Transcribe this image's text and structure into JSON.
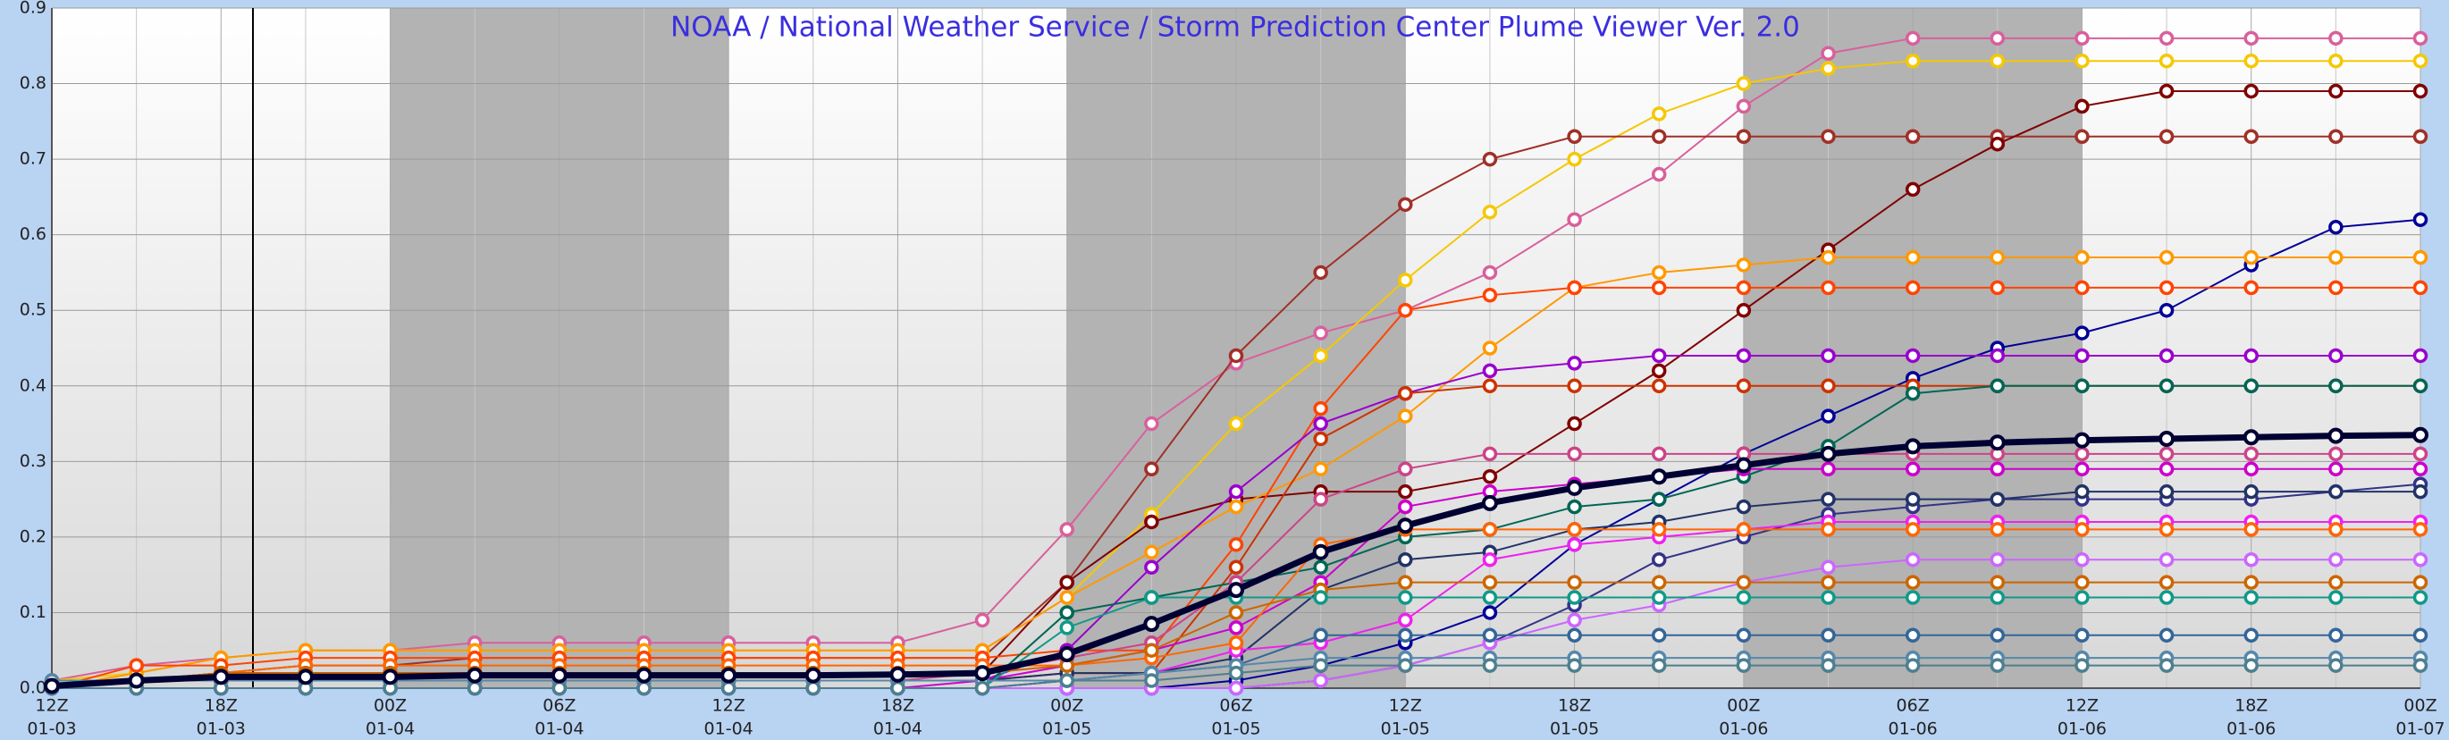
{
  "chart_data": {
    "type": "line",
    "title": "NOAA / National Weather Service / Storm Prediction Center Plume Viewer Ver. 2.0",
    "categories": [
      "12Z",
      null,
      "18Z",
      null,
      "00Z",
      null,
      "06Z",
      null,
      "12Z",
      null,
      "18Z",
      null,
      "00Z",
      null,
      "06Z",
      null,
      "12Z",
      null,
      "18Z",
      null,
      "00Z",
      null,
      "06Z",
      null,
      "12Z",
      null,
      "18Z",
      null,
      "00Z"
    ],
    "category_dates": [
      "01-03",
      null,
      "01-03",
      null,
      "01-04",
      null,
      "01-04",
      null,
      "01-04",
      null,
      "01-04",
      null,
      "01-05",
      null,
      "01-05",
      null,
      "01-05",
      null,
      "01-05",
      null,
      "01-06",
      null,
      "01-06",
      null,
      "01-06",
      null,
      "01-06",
      null,
      "01-07"
    ],
    "ylim": [
      0,
      0.9
    ],
    "yticks": [
      {
        "value": 0,
        "label": "0.0"
      },
      0.1,
      0.2,
      0.3,
      0.4,
      0.5,
      0.6,
      0.7,
      0.8,
      0.9
    ],
    "grid": true,
    "series": [
      {
        "color": "#d8609c",
        "values": [
          0.01,
          0.03,
          0.04,
          0.05,
          0.05,
          0.06,
          0.06,
          0.06,
          0.06,
          0.06,
          0.06,
          0.09,
          0.21,
          0.35,
          0.43,
          0.47,
          0.5,
          0.55,
          0.62,
          0.68,
          0.77,
          0.84,
          0.86,
          0.86,
          0.86,
          0.86,
          0.86,
          0.86,
          0.86
        ]
      },
      {
        "color": "#f5c800",
        "values": [
          0.01,
          0.02,
          0.04,
          0.05,
          0.05,
          0.05,
          0.05,
          0.05,
          0.05,
          0.05,
          0.05,
          0.05,
          0.12,
          0.23,
          0.35,
          0.44,
          0.54,
          0.63,
          0.7,
          0.76,
          0.8,
          0.82,
          0.83,
          0.83,
          0.83,
          0.83,
          0.83,
          0.83,
          0.83
        ]
      },
      {
        "color": "#a03028",
        "values": [
          0,
          0.01,
          0.02,
          0.03,
          0.03,
          0.04,
          0.04,
          0.04,
          0.04,
          0.04,
          0.04,
          0.04,
          0.14,
          0.29,
          0.44,
          0.55,
          0.64,
          0.7,
          0.73,
          0.73,
          0.73,
          0.73,
          0.73,
          0.73,
          0.73,
          0.73,
          0.73,
          0.73,
          0.73
        ]
      },
      {
        "color": "#800000",
        "values": [
          0,
          0.01,
          0.02,
          0.02,
          0.02,
          0.02,
          0.02,
          0.02,
          0.02,
          0.02,
          0.02,
          0.02,
          0.14,
          0.22,
          0.25,
          0.26,
          0.26,
          0.28,
          0.35,
          0.42,
          0.5,
          0.58,
          0.66,
          0.72,
          0.77,
          0.79,
          0.79,
          0.79,
          0.79
        ]
      },
      {
        "color": "#000099",
        "values": [
          0,
          0,
          0,
          0,
          0,
          0,
          0,
          0,
          0,
          0,
          0,
          0,
          0,
          0,
          0.01,
          0.03,
          0.06,
          0.1,
          0.19,
          0.25,
          0.31,
          0.36,
          0.41,
          0.45,
          0.47,
          0.5,
          0.56,
          0.61,
          0.62
        ]
      },
      {
        "color": "#ff9900",
        "values": [
          0,
          0.02,
          0.04,
          0.05,
          0.05,
          0.05,
          0.05,
          0.05,
          0.05,
          0.05,
          0.05,
          0.05,
          0.12,
          0.18,
          0.24,
          0.29,
          0.36,
          0.45,
          0.53,
          0.55,
          0.56,
          0.57,
          0.57,
          0.57,
          0.57,
          0.57,
          0.57,
          0.57,
          0.57
        ]
      },
      {
        "color": "#ff4400",
        "values": [
          0,
          0.03,
          0.03,
          0.04,
          0.04,
          0.04,
          0.04,
          0.04,
          0.04,
          0.04,
          0.04,
          0.04,
          0.05,
          0.05,
          0.19,
          0.37,
          0.5,
          0.52,
          0.53,
          0.53,
          0.53,
          0.53,
          0.53,
          0.53,
          0.53,
          0.53,
          0.53,
          0.53,
          0.53
        ]
      },
      {
        "color": "#9900cc",
        "values": [
          0,
          0.01,
          0.01,
          0.01,
          0.01,
          0.01,
          0.01,
          0.01,
          0.01,
          0.01,
          0.01,
          0.01,
          0.05,
          0.16,
          0.26,
          0.35,
          0.39,
          0.42,
          0.43,
          0.44,
          0.44,
          0.44,
          0.44,
          0.44,
          0.44,
          0.44,
          0.44,
          0.44,
          0.44
        ]
      },
      {
        "color": "#cc3300",
        "values": [
          0,
          0.01,
          0.01,
          0.01,
          0.01,
          0.01,
          0.01,
          0.01,
          0.01,
          0.01,
          0.01,
          0.01,
          0.02,
          0.02,
          0.16,
          0.33,
          0.39,
          0.4,
          0.4,
          0.4,
          0.4,
          0.4,
          0.4,
          0.4,
          0.4,
          0.4,
          0.4,
          0.4,
          0.4
        ]
      },
      {
        "color": "#006655",
        "values": [
          0,
          0,
          0,
          0,
          0,
          0,
          0,
          0,
          0,
          0,
          0,
          0,
          0.1,
          0.12,
          0.14,
          0.16,
          0.2,
          0.21,
          0.24,
          0.25,
          0.28,
          0.32,
          0.39,
          0.4,
          0.4,
          0.4,
          0.4,
          0.4,
          0.4
        ]
      },
      {
        "color": "#cc4488",
        "values": [
          0,
          0.01,
          0.01,
          0.01,
          0.01,
          0.01,
          0.01,
          0.01,
          0.01,
          0.01,
          0.01,
          0.02,
          0.04,
          0.06,
          0.14,
          0.25,
          0.29,
          0.31,
          0.31,
          0.31,
          0.31,
          0.31,
          0.31,
          0.31,
          0.31,
          0.31,
          0.31,
          0.31,
          0.31
        ]
      },
      {
        "color": "#cc00cc",
        "values": [
          0,
          0,
          0,
          0,
          0,
          0,
          0,
          0,
          0,
          0,
          0,
          0.01,
          0.03,
          0.05,
          0.08,
          0.14,
          0.24,
          0.26,
          0.27,
          0.28,
          0.29,
          0.29,
          0.29,
          0.29,
          0.29,
          0.29,
          0.29,
          0.29,
          0.29
        ]
      },
      {
        "color": "#333388",
        "values": [
          0,
          0,
          0,
          0,
          0,
          0,
          0,
          0,
          0,
          0,
          0,
          0,
          0,
          0,
          0,
          0.01,
          0.03,
          0.06,
          0.11,
          0.17,
          0.2,
          0.23,
          0.24,
          0.25,
          0.25,
          0.25,
          0.25,
          0.26,
          0.27
        ]
      },
      {
        "color": "#223366",
        "values": [
          0.01,
          0.01,
          0.01,
          0.01,
          0.01,
          0.01,
          0.01,
          0.01,
          0.01,
          0.01,
          0.01,
          0.01,
          0.02,
          0.02,
          0.04,
          0.13,
          0.17,
          0.18,
          0.21,
          0.22,
          0.24,
          0.25,
          0.25,
          0.25,
          0.26,
          0.26,
          0.26,
          0.26,
          0.26
        ]
      },
      {
        "color": "#ee22ee",
        "values": [
          0,
          0,
          0,
          0,
          0,
          0,
          0,
          0,
          0,
          0,
          0,
          0,
          0.01,
          0.02,
          0.05,
          0.06,
          0.09,
          0.17,
          0.19,
          0.2,
          0.21,
          0.22,
          0.22,
          0.22,
          0.22,
          0.22,
          0.22,
          0.22,
          0.22
        ]
      },
      {
        "color": "#ff6600",
        "values": [
          0,
          0.01,
          0.02,
          0.03,
          0.03,
          0.03,
          0.03,
          0.03,
          0.03,
          0.03,
          0.03,
          0.03,
          0.03,
          0.04,
          0.06,
          0.19,
          0.21,
          0.21,
          0.21,
          0.21,
          0.21,
          0.21,
          0.21,
          0.21,
          0.21,
          0.21,
          0.21,
          0.21,
          0.21
        ]
      },
      {
        "color": "#cc66ff",
        "values": [
          0,
          0,
          0,
          0,
          0,
          0,
          0,
          0,
          0,
          0,
          0,
          0,
          0,
          0,
          0,
          0.01,
          0.03,
          0.06,
          0.09,
          0.11,
          0.14,
          0.16,
          0.17,
          0.17,
          0.17,
          0.17,
          0.17,
          0.17,
          0.17
        ]
      },
      {
        "color": "#cc6600",
        "values": [
          0,
          0.01,
          0.02,
          0.02,
          0.02,
          0.02,
          0.02,
          0.02,
          0.02,
          0.02,
          0.02,
          0.02,
          0.03,
          0.05,
          0.1,
          0.13,
          0.14,
          0.14,
          0.14,
          0.14,
          0.14,
          0.14,
          0.14,
          0.14,
          0.14,
          0.14,
          0.14,
          0.14,
          0.14
        ]
      },
      {
        "color": "#119988",
        "values": [
          0,
          0,
          0,
          0,
          0,
          0,
          0,
          0,
          0,
          0,
          0,
          0,
          0.08,
          0.12,
          0.12,
          0.12,
          0.12,
          0.12,
          0.12,
          0.12,
          0.12,
          0.12,
          0.12,
          0.12,
          0.12,
          0.12,
          0.12,
          0.12,
          0.12
        ]
      },
      {
        "color": "#336699",
        "values": [
          0,
          0,
          0,
          0,
          0,
          0,
          0,
          0,
          0,
          0,
          0,
          0,
          0.01,
          0.02,
          0.03,
          0.07,
          0.07,
          0.07,
          0.07,
          0.07,
          0.07,
          0.07,
          0.07,
          0.07,
          0.07,
          0.07,
          0.07,
          0.07,
          0.07
        ]
      },
      {
        "color": "#5588aa",
        "values": [
          0.01,
          0.01,
          0.01,
          0.01,
          0.01,
          0.01,
          0.01,
          0.01,
          0.01,
          0.01,
          0.01,
          0.01,
          0.01,
          0.02,
          0.03,
          0.04,
          0.04,
          0.04,
          0.04,
          0.04,
          0.04,
          0.04,
          0.04,
          0.04,
          0.04,
          0.04,
          0.04,
          0.04,
          0.04
        ]
      },
      {
        "color": "#4d7f8f",
        "values": [
          0,
          0,
          0,
          0,
          0,
          0,
          0,
          0,
          0,
          0,
          0,
          0,
          0.01,
          0.01,
          0.02,
          0.03,
          0.03,
          0.03,
          0.03,
          0.03,
          0.03,
          0.03,
          0.03,
          0.03,
          0.03,
          0.03,
          0.03,
          0.03,
          0.03
        ]
      },
      {
        "color": "#000033",
        "bold": true,
        "values": [
          0.003,
          0.01,
          0.015,
          0.015,
          0.015,
          0.017,
          0.017,
          0.017,
          0.017,
          0.017,
          0.018,
          0.02,
          0.045,
          0.085,
          0.13,
          0.18,
          0.215,
          0.245,
          0.265,
          0.28,
          0.295,
          0.31,
          0.32,
          0.325,
          0.328,
          0.33,
          0.332,
          0.334,
          0.335
        ]
      }
    ]
  }
}
